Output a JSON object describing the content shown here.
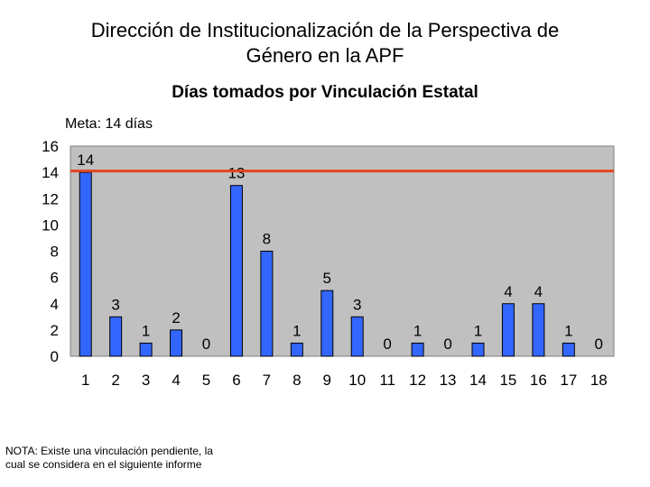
{
  "slide": {
    "title_line1": "Dirección de Institucionalización de la Perspectiva de",
    "title_line2": "Género en la APF",
    "note": "NOTA: Existe una vinculación pendiente, la cual se considera en el siguiente informe"
  },
  "chart_data": {
    "type": "bar",
    "title": "Días tomados por Vinculación Estatal",
    "categories": [
      "1",
      "2",
      "3",
      "4",
      "5",
      "6",
      "7",
      "8",
      "9",
      "10",
      "11",
      "12",
      "13",
      "14",
      "15",
      "16",
      "17",
      "18"
    ],
    "values": [
      14,
      3,
      1,
      2,
      0,
      13,
      8,
      1,
      5,
      3,
      0,
      1,
      0,
      1,
      4,
      4,
      1,
      0
    ],
    "ylim": [
      0,
      16
    ],
    "yticks": [
      0,
      2,
      4,
      6,
      8,
      10,
      12,
      14,
      16
    ],
    "target": {
      "label": "Meta: 14 días",
      "value": 14.1
    },
    "grid": false,
    "xlabel": "",
    "ylabel": "",
    "colors": {
      "bar": "#3366ff",
      "bar_stroke": "#000000",
      "plot_bg": "#c0c0c0",
      "target_line": "#e0451f"
    }
  }
}
